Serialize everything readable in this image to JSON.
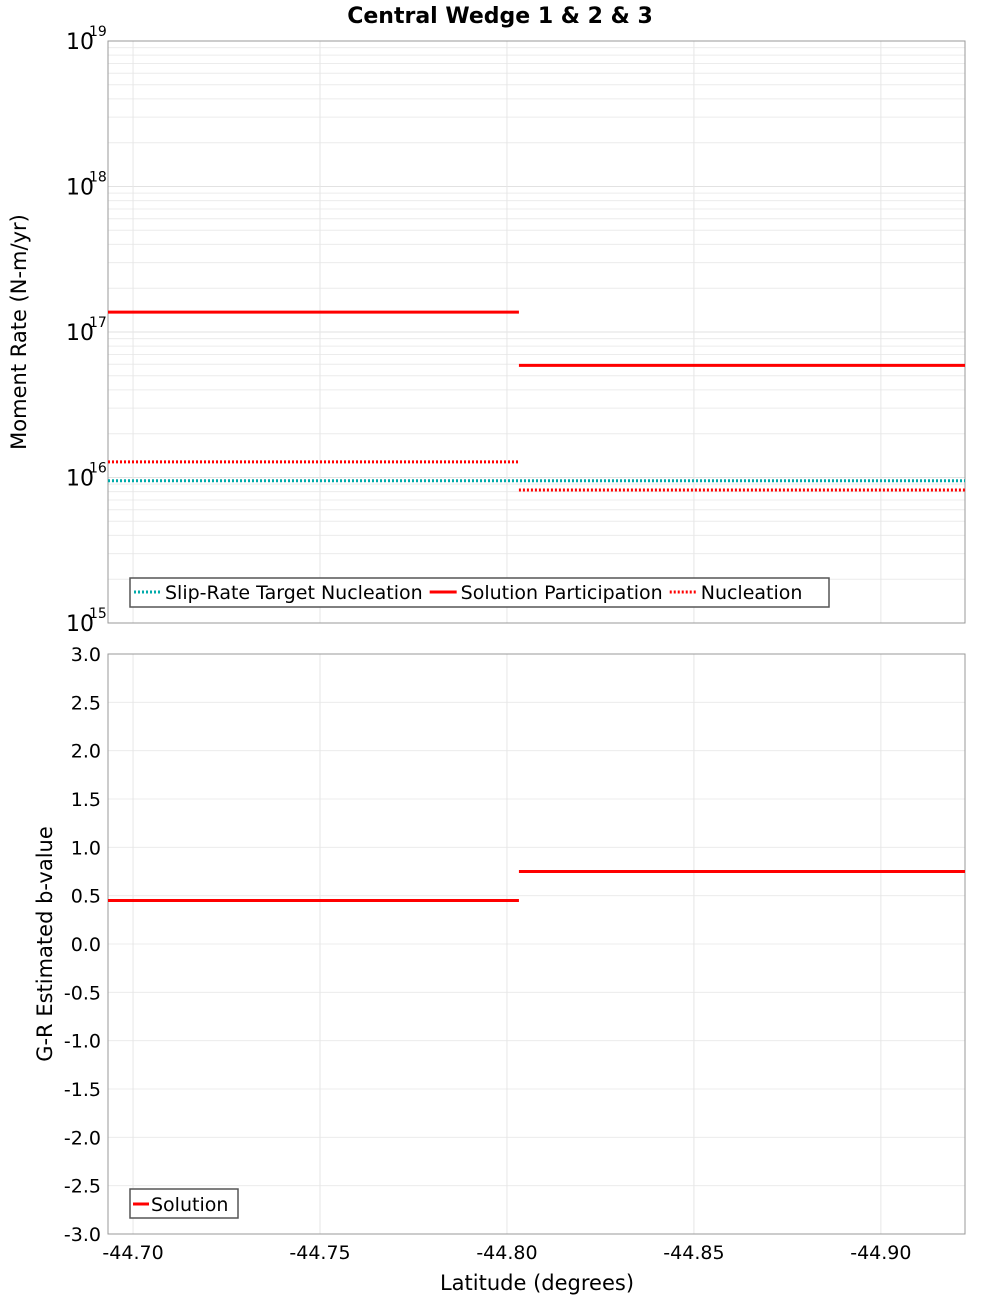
{
  "chart_data": [
    {
      "type": "line",
      "title": "Central Wedge 1 & 2 & 3",
      "xlabel": "Latitude (degrees)",
      "ylabel": "Moment Rate (N-m/yr)",
      "yscale": "log",
      "ylim": [
        1000000000000000.0,
        1e+19
      ],
      "xlim": [
        -44.6933,
        -44.9225
      ],
      "ytick_exponents": [
        "15",
        "16",
        "17",
        "18",
        "19"
      ],
      "ytick_base": "10",
      "grid": true,
      "legend_placement": "bottom-left",
      "series": [
        {
          "name": "Slip-Rate Target Nucleation",
          "color": "#00aaaa",
          "style": "dotted",
          "segments": [
            {
              "x": [
                -44.6933,
                -44.9225
              ],
              "y": 9500000000000000.0
            }
          ]
        },
        {
          "name": "Solution Participation",
          "color": "#ff0000",
          "style": "solid",
          "segments": [
            {
              "x": [
                -44.6933,
                -44.8032
              ],
              "y": 1.37e+17
            },
            {
              "x": [
                -44.8032,
                -44.9225
              ],
              "y": 5.9e+16
            }
          ]
        },
        {
          "name": "Nucleation",
          "color": "#ff0000",
          "style": "dotted",
          "segments": [
            {
              "x": [
                -44.6933,
                -44.8032
              ],
              "y": 1.28e+16
            },
            {
              "x": [
                -44.8032,
                -44.9225
              ],
              "y": 8200000000000000.0
            }
          ]
        }
      ]
    },
    {
      "type": "line",
      "xlabel": "Latitude (degrees)",
      "ylabel": "G-R Estimated b-value",
      "ylim": [
        -3.0,
        3.0
      ],
      "xlim": [
        -44.6933,
        -44.9225
      ],
      "yticks": [
        "3.0",
        "2.5",
        "2.0",
        "1.5",
        "1.0",
        "0.5",
        "0.0",
        "-0.5",
        "-1.0",
        "-1.5",
        "-2.0",
        "-2.5",
        "-3.0"
      ],
      "xticks": [
        "-44.70",
        "-44.75",
        "-44.80",
        "-44.85",
        "-44.90"
      ],
      "grid": true,
      "legend_placement": "bottom-left",
      "series": [
        {
          "name": "Solution",
          "color": "#ff0000",
          "style": "solid",
          "segments": [
            {
              "x": [
                -44.6933,
                -44.8032
              ],
              "y": 0.45
            },
            {
              "x": [
                -44.8032,
                -44.9225
              ],
              "y": 0.75
            }
          ]
        }
      ]
    }
  ]
}
